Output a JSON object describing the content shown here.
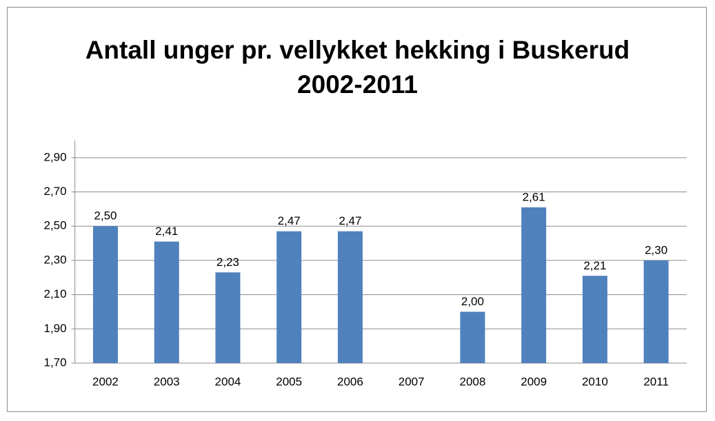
{
  "chart_data": {
    "type": "bar",
    "title": "Antall unger pr. vellykket hekking i Buskerud 2002-2011",
    "categories": [
      "2002",
      "2003",
      "2004",
      "2005",
      "2006",
      "2007",
      "2008",
      "2009",
      "2010",
      "2011"
    ],
    "values": [
      2.5,
      2.41,
      2.23,
      2.47,
      2.47,
      null,
      2.0,
      2.61,
      2.21,
      2.3
    ],
    "value_labels": [
      "2,50",
      "2,41",
      "2,23",
      "2,47",
      "2,47",
      null,
      "2,00",
      "2,61",
      "2,21",
      "2,30"
    ],
    "color": "#4f81bd",
    "ylim": [
      1.7,
      3.0
    ],
    "yticks": [
      {
        "value": 1.7,
        "label": "1,70"
      },
      {
        "value": 1.9,
        "label": "1,90"
      },
      {
        "value": 2.1,
        "label": "2,10"
      },
      {
        "value": 2.3,
        "label": "2,30"
      },
      {
        "value": 2.5,
        "label": "2,50"
      },
      {
        "value": 2.7,
        "label": "2,70"
      },
      {
        "value": 2.9,
        "label": "2,90"
      }
    ],
    "grid": true
  }
}
